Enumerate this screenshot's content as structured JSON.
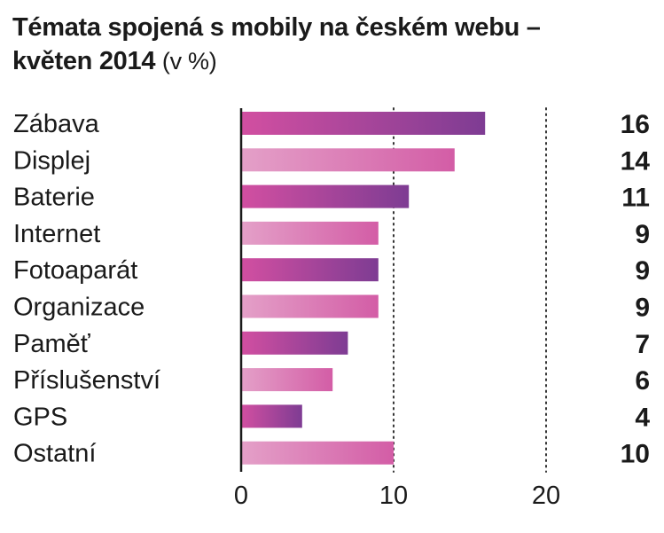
{
  "header": {
    "title_line1": "Témata spojená s mobily na českém webu –",
    "title_line2": "květen 2014",
    "unit": "(v %)"
  },
  "chart_data": {
    "type": "bar",
    "orientation": "horizontal",
    "categories": [
      "Zábava",
      "Displej",
      "Baterie",
      "Internet",
      "Fotoaparát",
      "Organizace",
      "Paměť",
      "Příslušenství",
      "GPS",
      "Ostatní"
    ],
    "values": [
      16,
      14,
      11,
      9,
      9,
      9,
      7,
      6,
      4,
      10
    ],
    "value_labels": [
      "16",
      "14",
      "11",
      "9",
      "9",
      "9",
      "7",
      "6",
      "4",
      "10"
    ],
    "xlim": [
      0,
      20
    ],
    "xticks": [
      0,
      10,
      20
    ],
    "xtick_labels": [
      "0",
      "10",
      "20"
    ],
    "grid": "dotted vertical lines at 10 and 20",
    "legend": "none",
    "colors": {
      "bar_dark_start": "#d24fa1",
      "bar_dark_end": "#7e3c93",
      "bar_light_start": "#e4a0c8",
      "bar_light_end": "#d35da6",
      "axis": "#1a1a1a",
      "grid": "#333333"
    }
  }
}
